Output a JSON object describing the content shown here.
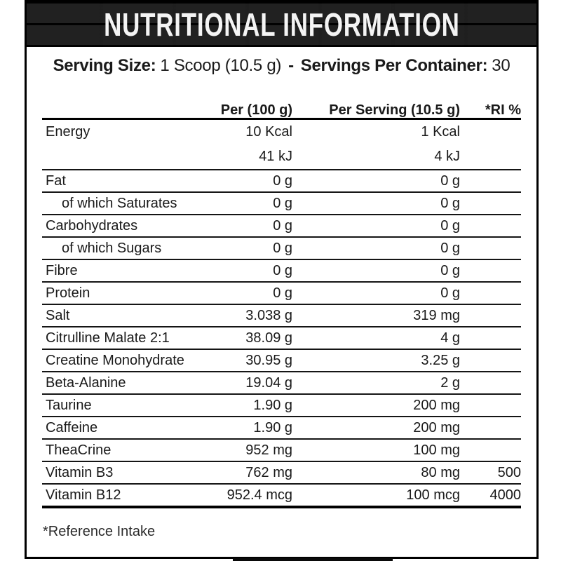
{
  "banner": {
    "title": "NUTRITIONAL INFORMATION"
  },
  "serving_line": {
    "size_label": "Serving Size:",
    "size_value": "1 Scoop (10.5 g)",
    "separator": "-",
    "container_label": "Servings Per Container:",
    "container_value": "30"
  },
  "table": {
    "headers": [
      "",
      "Per (100 g)",
      "Per Serving (10.5 g)",
      "*RI %"
    ],
    "rows": [
      {
        "indent": false,
        "cells": [
          "Energy",
          "10 Kcal",
          "1 Kcal",
          ""
        ],
        "cells2": [
          "",
          "41 kJ",
          "4 kJ",
          ""
        ]
      },
      {
        "indent": false,
        "cells": [
          "Fat",
          "0 g",
          "0 g",
          ""
        ]
      },
      {
        "indent": true,
        "cells": [
          "of which Saturates",
          "0 g",
          "0 g",
          ""
        ]
      },
      {
        "indent": false,
        "cells": [
          "Carbohydrates",
          "0 g",
          "0 g",
          ""
        ]
      },
      {
        "indent": true,
        "cells": [
          "of which Sugars",
          "0 g",
          "0 g",
          ""
        ]
      },
      {
        "indent": false,
        "cells": [
          "Fibre",
          "0 g",
          "0 g",
          ""
        ]
      },
      {
        "indent": false,
        "cells": [
          "Protein",
          "0 g",
          "0 g",
          ""
        ]
      },
      {
        "indent": false,
        "cells": [
          "Salt",
          "3.038 g",
          "319 mg",
          ""
        ]
      },
      {
        "indent": false,
        "cells": [
          "Citrulline Malate 2:1",
          "38.09 g",
          "4 g",
          ""
        ]
      },
      {
        "indent": false,
        "cells": [
          "Creatine Monohydrate",
          "30.95 g",
          "3.25 g",
          ""
        ]
      },
      {
        "indent": false,
        "cells": [
          "Beta-Alanine",
          "19.04 g",
          "2 g",
          ""
        ]
      },
      {
        "indent": false,
        "cells": [
          "Taurine",
          "1.90 g",
          "200 mg",
          ""
        ]
      },
      {
        "indent": false,
        "cells": [
          "Caffeine",
          "1.90 g",
          "200 mg",
          ""
        ]
      },
      {
        "indent": false,
        "cells": [
          "TheaCrine",
          "952 mg",
          "100 mg",
          ""
        ]
      },
      {
        "indent": false,
        "cells": [
          "Vitamin B3",
          "762 mg",
          "80 mg",
          "500"
        ]
      },
      {
        "indent": false,
        "cells": [
          "Vitamin B12",
          "952.4 mcg",
          "100 mcg",
          "4000"
        ]
      }
    ]
  },
  "footnote": "*Reference Intake"
}
